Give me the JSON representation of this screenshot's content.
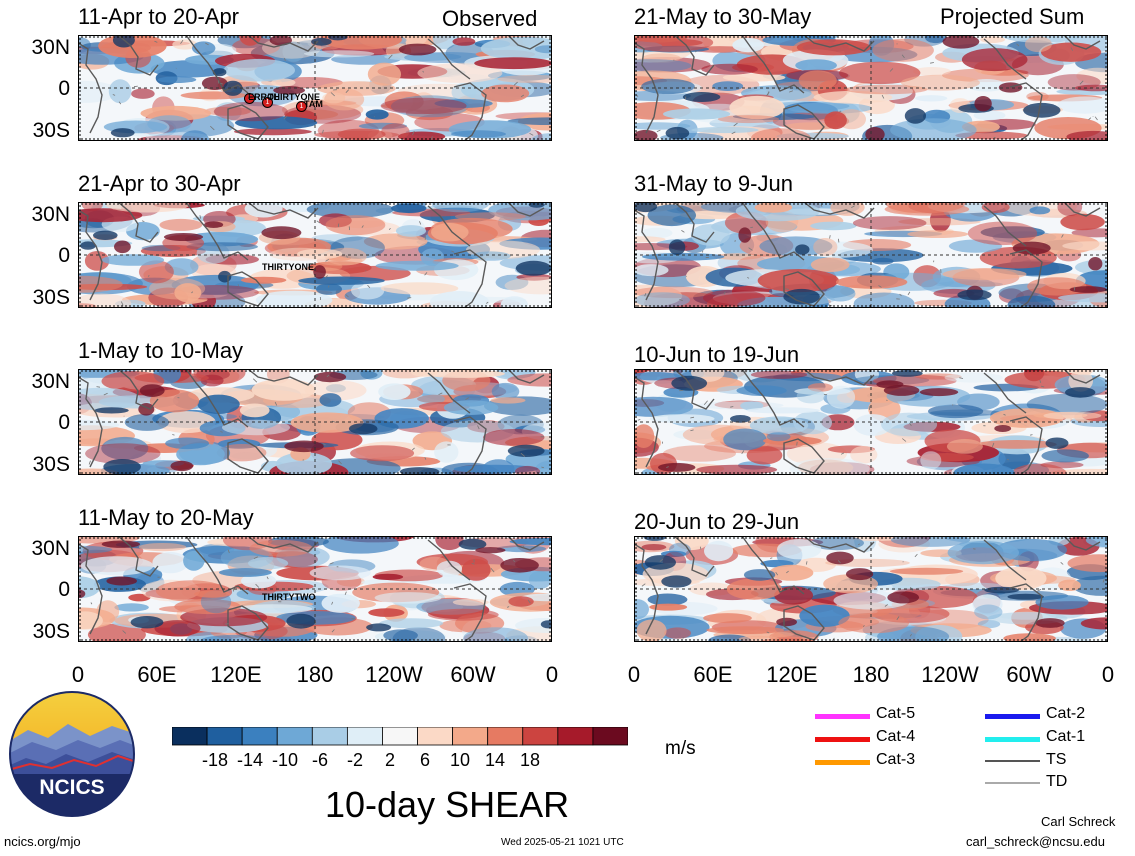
{
  "left_tag": "Observed",
  "right_tag": "Projected Sum",
  "panels": [
    {
      "title": "11-Apr to 20-Apr",
      "storm_labels": [
        "ERROL",
        "THIRTYONE",
        "TAM"
      ],
      "storm_markers": [
        "1",
        "1",
        "1"
      ]
    },
    {
      "title": "21-Apr to 30-Apr",
      "storm_labels": [
        "THIRTYONE"
      ],
      "storm_markers": []
    },
    {
      "title": "1-May to 10-May",
      "storm_labels": [],
      "storm_markers": []
    },
    {
      "title": "11-May to 20-May",
      "storm_labels": [
        "THIRTYTWO"
      ],
      "storm_markers": []
    },
    {
      "title": "21-May to 30-May",
      "storm_labels": [],
      "storm_markers": []
    },
    {
      "title": "31-May to 9-Jun",
      "storm_labels": [],
      "storm_markers": []
    },
    {
      "title": "10-Jun to 19-Jun",
      "storm_labels": [],
      "storm_markers": []
    },
    {
      "title": "20-Jun to 29-Jun",
      "storm_labels": [],
      "storm_markers": []
    }
  ],
  "lat_ticks": [
    "30N",
    "0",
    "30S"
  ],
  "lon_ticks": [
    "0",
    "60E",
    "120E",
    "180",
    "120W",
    "60W",
    "0"
  ],
  "colorbar": {
    "labels": [
      "-18",
      "-14",
      "-10",
      "-6",
      "-2",
      "2",
      "6",
      "10",
      "14",
      "18"
    ],
    "colors": [
      "#0a2f5e",
      "#1f5f9f",
      "#3b80bf",
      "#6ea8d6",
      "#a9cde6",
      "#dfeef7",
      "#f7f7f7",
      "#fbd9c6",
      "#f3a98a",
      "#e67a62",
      "#cc4440",
      "#a61a2a",
      "#6b0a1f"
    ],
    "units": "m/s"
  },
  "legend": [
    {
      "label": "Cat-5",
      "color": "#ff33ff"
    },
    {
      "label": "Cat-4",
      "color": "#ee1111"
    },
    {
      "label": "Cat-3",
      "color": "#ff9900"
    },
    {
      "label": "Cat-2",
      "color": "#1a1aee"
    },
    {
      "label": "Cat-1",
      "color": "#22eeee"
    },
    {
      "label": "TS",
      "color": "#555555"
    },
    {
      "label": "TD",
      "color": "#aaaaaa"
    }
  ],
  "logo_text": "NCICS",
  "main_title": "10-day SHEAR",
  "footer": {
    "url": "ncics.org/mjo",
    "timestamp": "Wed 2025-05-21 1021 UTC",
    "author": "Carl Schreck",
    "email": "carl_schreck@ncsu.edu"
  },
  "chart_data": {
    "type": "heatmap",
    "variable": "10-day SHEAR",
    "units": "m/s",
    "color_levels": [
      -18,
      -14,
      -10,
      -6,
      -2,
      2,
      6,
      10,
      14,
      18
    ],
    "lat_ticks": [
      "30N",
      "0",
      "30S"
    ],
    "lon_ticks": [
      "0",
      "60E",
      "120E",
      "180",
      "120W",
      "60W",
      "0"
    ],
    "columns": [
      {
        "tag": "Observed",
        "periods": [
          "11-Apr to 20-Apr",
          "21-Apr to 30-Apr",
          "1-May to 10-May",
          "11-May to 20-May"
        ]
      },
      {
        "tag": "Projected Sum",
        "periods": [
          "21-May to 30-May",
          "31-May to 9-Jun",
          "10-Jun to 19-Jun",
          "20-Jun to 29-Jun"
        ]
      }
    ],
    "storm_legend": [
      "Cat-5",
      "Cat-4",
      "Cat-3",
      "Cat-2",
      "Cat-1",
      "TS",
      "TD"
    ]
  }
}
